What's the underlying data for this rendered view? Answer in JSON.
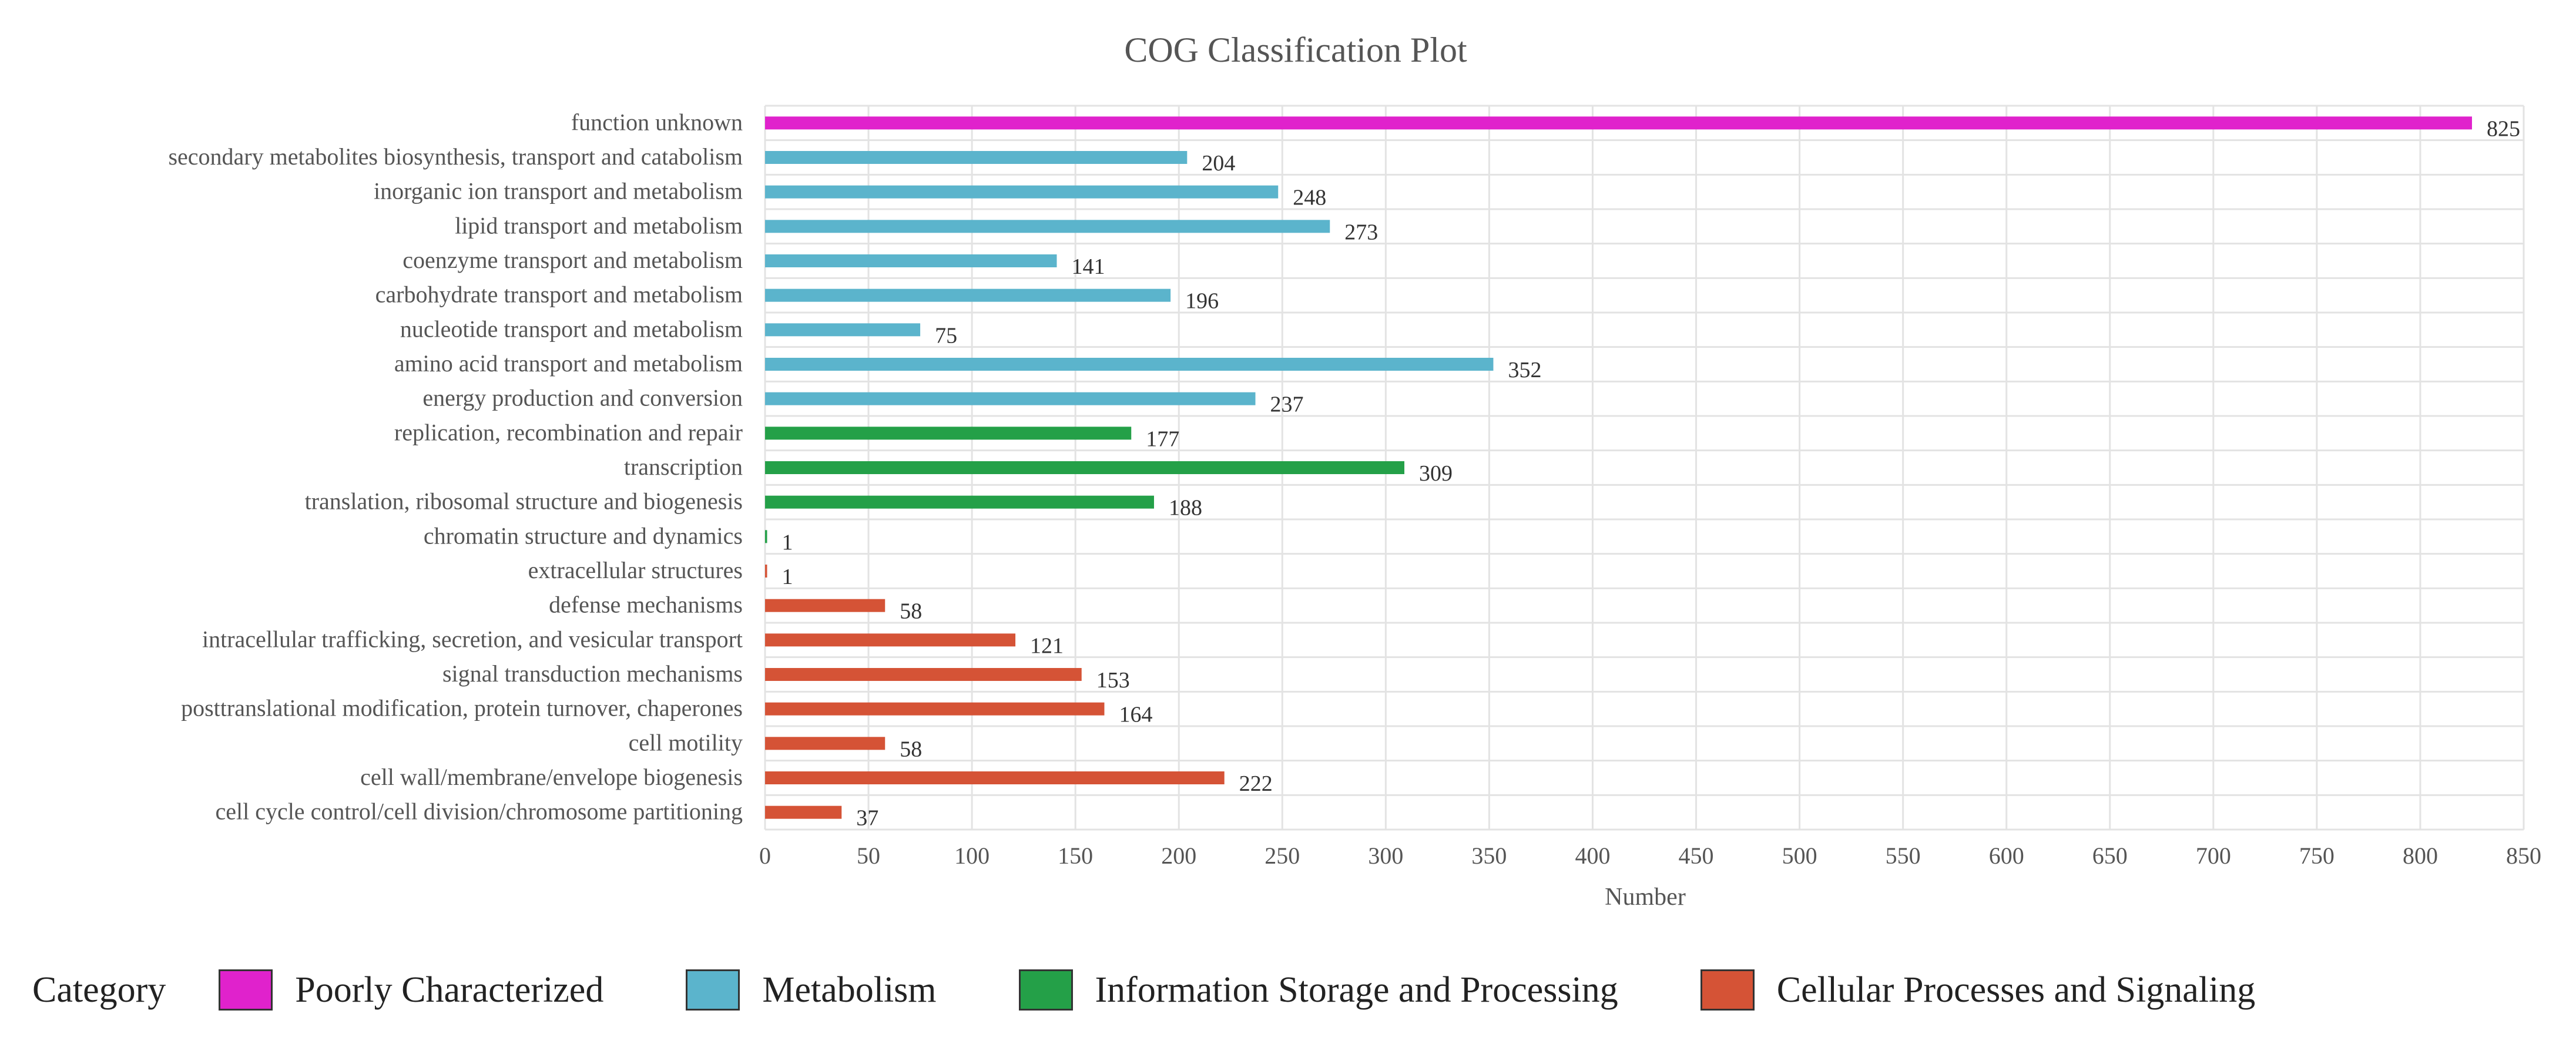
{
  "chart_data": {
    "type": "bar",
    "orientation": "horizontal",
    "title": "COG Classification Plot",
    "xlabel": "Number",
    "ylabel": "",
    "xlim": [
      0,
      850
    ],
    "xticks": [
      0,
      50,
      100,
      150,
      200,
      250,
      300,
      350,
      400,
      450,
      500,
      550,
      600,
      650,
      700,
      750,
      800,
      850
    ],
    "grid": true,
    "legend_position": "bottom",
    "categories": [
      "function unknown",
      "secondary metabolites biosynthesis, transport and catabolism",
      "inorganic ion transport and metabolism",
      "lipid transport and metabolism",
      "coenzyme transport and metabolism",
      "carbohydrate transport and metabolism",
      "nucleotide transport and metabolism",
      "amino acid transport and metabolism",
      "energy production and conversion",
      "replication, recombination and repair",
      "transcription",
      "translation, ribosomal structure and biogenesis",
      "chromatin structure and dynamics",
      "extracellular structures",
      "defense mechanisms",
      "intracellular trafficking, secretion, and vesicular transport",
      "signal transduction mechanisms",
      "posttranslational modification, protein turnover, chaperones",
      "cell motility",
      "cell wall/membrane/envelope biogenesis",
      "cell cycle control/cell division/chromosome partitioning"
    ],
    "values": [
      825,
      204,
      248,
      273,
      141,
      196,
      75,
      352,
      237,
      177,
      309,
      188,
      1,
      1,
      58,
      121,
      153,
      164,
      58,
      222,
      37
    ],
    "groups": [
      0,
      1,
      1,
      1,
      1,
      1,
      1,
      1,
      1,
      2,
      2,
      2,
      2,
      3,
      3,
      3,
      3,
      3,
      3,
      3,
      3
    ],
    "legend": {
      "title": "Category",
      "entries": [
        {
          "name": "Poorly Characterized",
          "color": "#E022CC"
        },
        {
          "name": "Metabolism",
          "color": "#5BB4CC"
        },
        {
          "name": "Information Storage and Processing",
          "color": "#24A048"
        },
        {
          "name": "Cellular Processes and Signaling",
          "color": "#D55336"
        }
      ]
    }
  }
}
